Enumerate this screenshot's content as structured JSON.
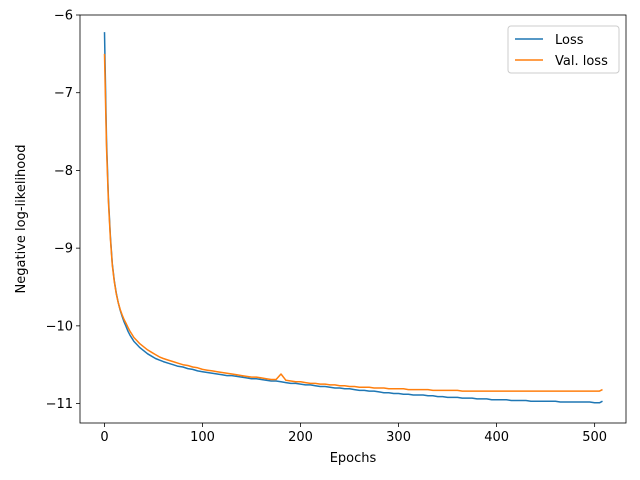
{
  "chart_data": {
    "type": "line",
    "title": "",
    "xlabel": "Epochs",
    "ylabel": "Negative log-likelihood",
    "xlim": [
      -25,
      532
    ],
    "ylim": [
      -11.25,
      -6.0
    ],
    "xticks": [
      0,
      100,
      200,
      300,
      400,
      500
    ],
    "yticks": [
      -11,
      -10,
      -9,
      -8,
      -7,
      -6
    ],
    "xtick_labels": [
      "0",
      "100",
      "200",
      "300",
      "400",
      "500"
    ],
    "ytick_labels": [
      "−11",
      "−10",
      "−9",
      "−8",
      "−7",
      "−6"
    ],
    "grid": false,
    "legend_position": "top-right",
    "series": [
      {
        "name": "Loss",
        "color": "#1f77b4",
        "x": [
          0,
          2,
          4,
          6,
          8,
          10,
          12,
          14,
          16,
          18,
          20,
          22,
          24,
          26,
          28,
          30,
          33,
          36,
          40,
          44,
          48,
          52,
          56,
          60,
          65,
          70,
          75,
          80,
          85,
          90,
          95,
          100,
          105,
          110,
          115,
          120,
          125,
          130,
          135,
          140,
          145,
          150,
          155,
          160,
          165,
          170,
          175,
          180,
          185,
          190,
          195,
          200,
          205,
          210,
          215,
          220,
          225,
          230,
          235,
          240,
          245,
          250,
          255,
          260,
          265,
          270,
          275,
          280,
          285,
          290,
          295,
          300,
          305,
          310,
          315,
          320,
          325,
          330,
          335,
          340,
          345,
          350,
          355,
          360,
          365,
          370,
          375,
          380,
          385,
          390,
          395,
          400,
          405,
          410,
          415,
          420,
          425,
          430,
          435,
          440,
          445,
          450,
          455,
          460,
          465,
          470,
          475,
          480,
          485,
          490,
          495,
          500,
          505,
          508
        ],
        "y": [
          -6.22,
          -7.6,
          -8.35,
          -8.85,
          -9.2,
          -9.42,
          -9.58,
          -9.7,
          -9.8,
          -9.88,
          -9.95,
          -10.01,
          -10.07,
          -10.12,
          -10.16,
          -10.2,
          -10.24,
          -10.28,
          -10.32,
          -10.36,
          -10.39,
          -10.42,
          -10.44,
          -10.46,
          -10.48,
          -10.5,
          -10.52,
          -10.53,
          -10.55,
          -10.56,
          -10.58,
          -10.59,
          -10.6,
          -10.61,
          -10.62,
          -10.63,
          -10.64,
          -10.64,
          -10.65,
          -10.66,
          -10.67,
          -10.68,
          -10.68,
          -10.69,
          -10.7,
          -10.71,
          -10.71,
          -10.72,
          -10.73,
          -10.74,
          -10.74,
          -10.75,
          -10.76,
          -10.76,
          -10.77,
          -10.78,
          -10.78,
          -10.79,
          -10.8,
          -10.8,
          -10.81,
          -10.81,
          -10.82,
          -10.83,
          -10.83,
          -10.84,
          -10.84,
          -10.85,
          -10.86,
          -10.86,
          -10.87,
          -10.87,
          -10.88,
          -10.88,
          -10.89,
          -10.89,
          -10.89,
          -10.9,
          -10.9,
          -10.91,
          -10.91,
          -10.92,
          -10.92,
          -10.92,
          -10.93,
          -10.93,
          -10.93,
          -10.94,
          -10.94,
          -10.94,
          -10.95,
          -10.95,
          -10.95,
          -10.95,
          -10.96,
          -10.96,
          -10.96,
          -10.96,
          -10.97,
          -10.97,
          -10.97,
          -10.97,
          -10.97,
          -10.97,
          -10.98,
          -10.98,
          -10.98,
          -10.98,
          -10.98,
          -10.98,
          -10.98,
          -10.99,
          -10.99,
          -10.97
        ]
      },
      {
        "name": "Val. loss",
        "color": "#ff7f0e",
        "x": [
          0,
          2,
          4,
          6,
          8,
          10,
          12,
          14,
          16,
          18,
          20,
          22,
          24,
          26,
          28,
          30,
          33,
          36,
          40,
          44,
          48,
          52,
          56,
          60,
          65,
          70,
          75,
          80,
          85,
          90,
          95,
          100,
          105,
          110,
          115,
          120,
          125,
          130,
          135,
          140,
          145,
          150,
          155,
          160,
          165,
          170,
          175,
          180,
          185,
          190,
          195,
          200,
          205,
          210,
          215,
          220,
          225,
          230,
          235,
          240,
          245,
          250,
          255,
          260,
          265,
          270,
          275,
          280,
          285,
          290,
          295,
          300,
          305,
          310,
          315,
          320,
          325,
          330,
          335,
          340,
          345,
          350,
          355,
          360,
          365,
          370,
          375,
          380,
          385,
          390,
          395,
          400,
          405,
          410,
          415,
          420,
          425,
          430,
          435,
          440,
          445,
          450,
          455,
          460,
          465,
          470,
          475,
          480,
          485,
          490,
          495,
          500,
          505,
          508
        ],
        "y": [
          -6.5,
          -7.7,
          -8.4,
          -8.88,
          -9.22,
          -9.43,
          -9.59,
          -9.7,
          -9.79,
          -9.86,
          -9.92,
          -9.97,
          -10.02,
          -10.07,
          -10.11,
          -10.15,
          -10.19,
          -10.23,
          -10.27,
          -10.31,
          -10.34,
          -10.37,
          -10.4,
          -10.42,
          -10.44,
          -10.46,
          -10.48,
          -10.5,
          -10.51,
          -10.53,
          -10.54,
          -10.56,
          -10.57,
          -10.58,
          -10.59,
          -10.6,
          -10.61,
          -10.62,
          -10.63,
          -10.64,
          -10.65,
          -10.66,
          -10.66,
          -10.67,
          -10.68,
          -10.69,
          -10.69,
          -10.62,
          -10.7,
          -10.71,
          -10.72,
          -10.72,
          -10.73,
          -10.74,
          -10.74,
          -10.75,
          -10.75,
          -10.76,
          -10.76,
          -10.77,
          -10.77,
          -10.78,
          -10.78,
          -10.79,
          -10.79,
          -10.79,
          -10.8,
          -10.8,
          -10.8,
          -10.81,
          -10.81,
          -10.81,
          -10.81,
          -10.82,
          -10.82,
          -10.82,
          -10.82,
          -10.82,
          -10.83,
          -10.83,
          -10.83,
          -10.83,
          -10.83,
          -10.83,
          -10.84,
          -10.84,
          -10.84,
          -10.84,
          -10.84,
          -10.84,
          -10.84,
          -10.84,
          -10.84,
          -10.84,
          -10.84,
          -10.84,
          -10.84,
          -10.84,
          -10.84,
          -10.84,
          -10.84,
          -10.84,
          -10.84,
          -10.84,
          -10.84,
          -10.84,
          -10.84,
          -10.84,
          -10.84,
          -10.84,
          -10.84,
          -10.84,
          -10.84,
          -10.82
        ]
      }
    ]
  }
}
